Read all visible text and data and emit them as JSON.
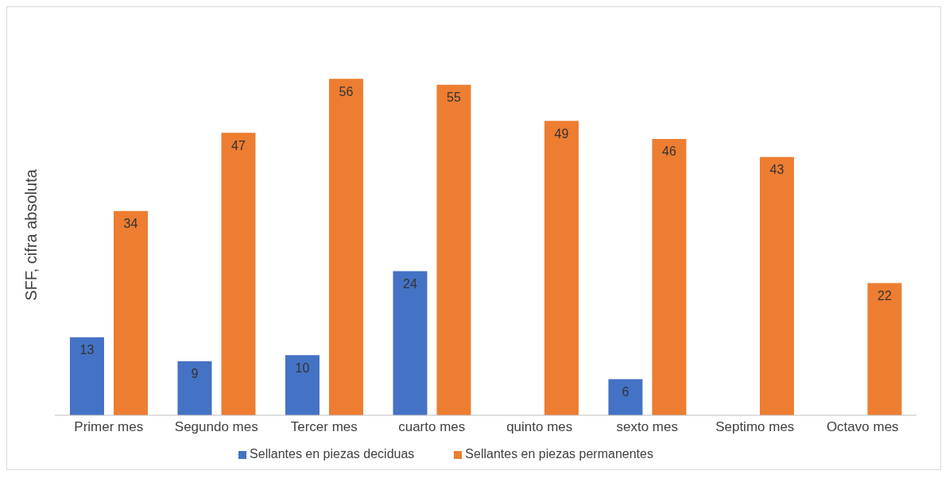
{
  "chart_data": {
    "type": "bar",
    "ylabel": "SFF, cifra absoluta",
    "categories": [
      "Primer mes",
      "Segundo mes",
      "Tercer mes",
      "cuarto mes",
      "quinto mes",
      "sexto mes",
      "Septimo mes",
      "Octavo mes"
    ],
    "series": [
      {
        "name": "Sellantes en piezas deciduas",
        "color": "#4472c4",
        "values": [
          13,
          9,
          10,
          24,
          null,
          6,
          null,
          null
        ]
      },
      {
        "name": "Sellantes en piezas permanentes",
        "color": "#ed7d31",
        "values": [
          34,
          47,
          56,
          55,
          49,
          46,
          43,
          22
        ]
      }
    ],
    "data_labels": true,
    "legend": "bottom",
    "grid": false
  }
}
